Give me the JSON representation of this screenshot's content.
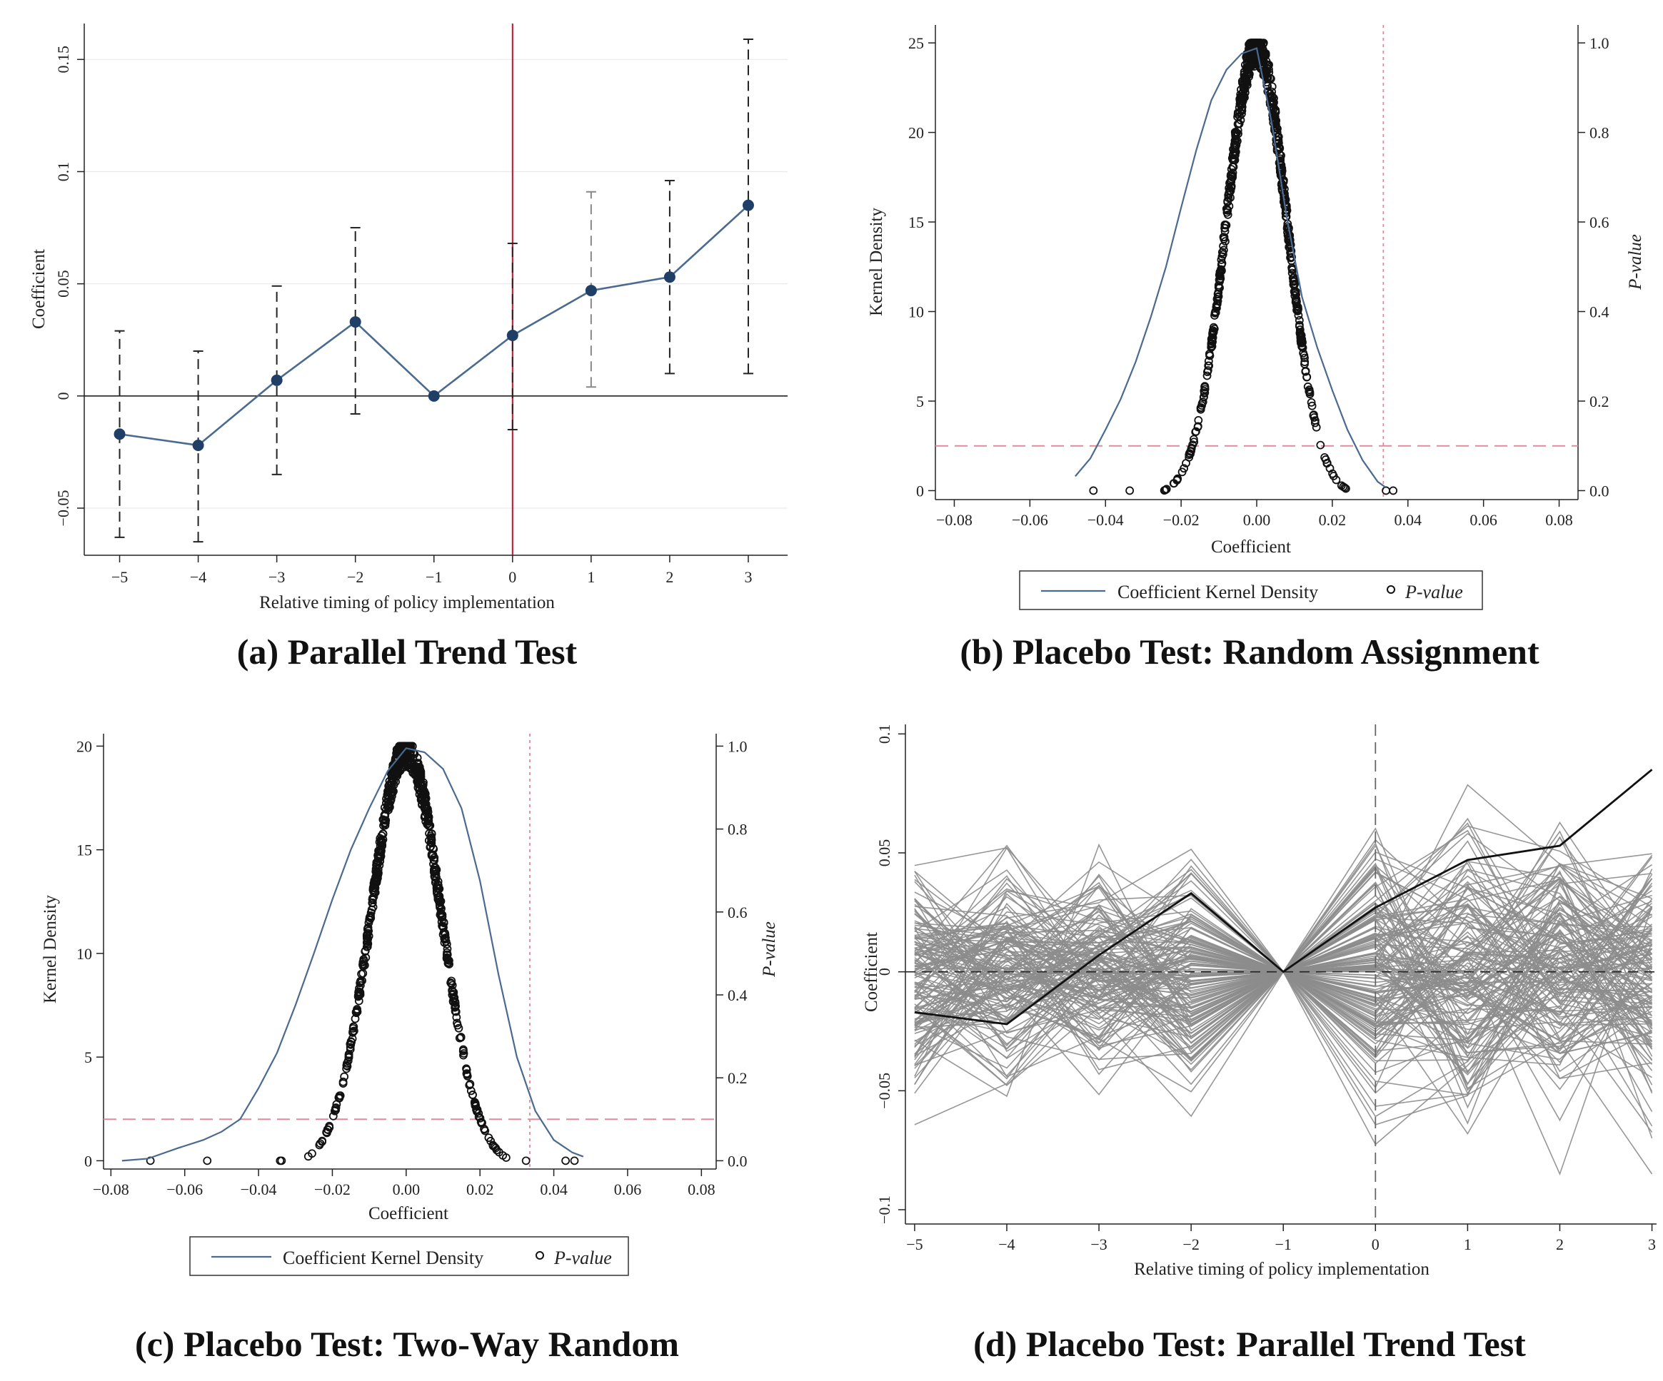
{
  "colors": {
    "navy": "#1f3f66",
    "line": "#4a6a8f",
    "red": "#c8102e",
    "pink": "#e08a9a",
    "gray": "#8c8c8c",
    "black": "#111111"
  },
  "chart_data": [
    {
      "id": "a",
      "type": "line",
      "caption": "(a) Parallel Trend Test",
      "xlabel": "Relative timing of policy implementation",
      "ylabel": "Coefficient",
      "x": [
        -5,
        -4,
        -3,
        -2,
        -1,
        0,
        1,
        2,
        3
      ],
      "x_ticks": [
        "−5",
        "−4",
        "−3",
        "−2",
        "−1",
        "0",
        "1",
        "2",
        "3"
      ],
      "coef": [
        -0.017,
        -0.022,
        0.007,
        0.033,
        0.0,
        0.027,
        0.047,
        0.053,
        0.085
      ],
      "ci_low": [
        -0.063,
        -0.065,
        -0.035,
        -0.008,
        0.0,
        -0.015,
        0.004,
        0.01,
        0.01
      ],
      "ci_high": [
        0.029,
        0.02,
        0.049,
        0.075,
        0.0,
        0.068,
        0.091,
        0.096,
        0.159
      ],
      "y_ticks": [
        -0.05,
        0,
        0.05,
        0.1,
        0.15
      ],
      "y_tick_labels": [
        "−0.05",
        "0",
        "0.05",
        "0.1",
        "0.15"
      ],
      "xlim": [
        -5.45,
        3.5
      ],
      "ylim": [
        -0.071,
        0.166
      ],
      "ref_line_x": 0,
      "grid": true
    },
    {
      "id": "b",
      "type": "density+scatter",
      "caption": "(b) Placebo Test: Random Assignment",
      "xlabel": "Coefficient",
      "ylabel_left": "Kernel Density",
      "ylabel_right": "P-value",
      "x_ticks": [
        -0.08,
        -0.06,
        -0.04,
        -0.02,
        0.0,
        0.02,
        0.04,
        0.06,
        0.08
      ],
      "x_tick_labels": [
        "−0.08",
        "−0.06",
        "−0.04",
        "−0.02",
        "0.00",
        "0.02",
        "0.04",
        "0.06",
        "0.08"
      ],
      "y_left_ticks": [
        0,
        5,
        10,
        15,
        20,
        25
      ],
      "y_right_ticks": [
        0.0,
        0.2,
        0.4,
        0.6,
        0.8,
        1.0
      ],
      "y_right_tick_labels": [
        "0.0",
        "0.2",
        "0.4",
        "0.6",
        "0.8",
        "1.0"
      ],
      "xlim": [
        -0.085,
        0.085
      ],
      "ylim_left": [
        -0.5,
        26
      ],
      "ylim_right": [
        -0.02,
        1.04
      ],
      "density_x": [
        -0.048,
        -0.044,
        -0.04,
        -0.036,
        -0.032,
        -0.028,
        -0.024,
        -0.02,
        -0.016,
        -0.012,
        -0.008,
        -0.004,
        0.0,
        0.004,
        0.008,
        0.012,
        0.016,
        0.02,
        0.024,
        0.028,
        0.032,
        0.034
      ],
      "density_y": [
        0.8,
        1.8,
        3.4,
        5.1,
        7.2,
        9.7,
        12.5,
        15.8,
        19.0,
        21.8,
        23.5,
        24.4,
        24.7,
        20.5,
        15.2,
        10.8,
        8.0,
        5.6,
        3.4,
        1.7,
        0.5,
        0.2
      ],
      "pvalue_spread_sd": 0.0085,
      "pvalue_x_range": [
        -0.048,
        0.038
      ],
      "ref_vline_x": 0.0335,
      "ref_hline_p": 0.1,
      "legend": [
        "Coefficient Kernel Density",
        "P-value"
      ]
    },
    {
      "id": "c",
      "type": "density+scatter",
      "caption": "(c) Placebo Test: Two-Way Random",
      "xlabel": "Coefficient",
      "ylabel_left": "Kernel Density",
      "ylabel_right": "P-value",
      "x_ticks": [
        -0.08,
        -0.06,
        -0.04,
        -0.02,
        0.0,
        0.02,
        0.04,
        0.06,
        0.08
      ],
      "x_tick_labels": [
        "−0.08",
        "−0.06",
        "−0.04",
        "−0.02",
        "0.00",
        "0.02",
        "0.04",
        "0.06",
        "0.08"
      ],
      "y_left_ticks": [
        0,
        5,
        10,
        15,
        20
      ],
      "y_right_ticks": [
        0.0,
        0.2,
        0.4,
        0.6,
        0.8,
        1.0
      ],
      "y_right_tick_labels": [
        "0.0",
        "0.2",
        "0.4",
        "0.6",
        "0.8",
        "1.0"
      ],
      "xlim": [
        -0.082,
        0.084
      ],
      "ylim_left": [
        -0.4,
        20.6
      ],
      "ylim_right": [
        -0.02,
        1.03
      ],
      "density_x": [
        -0.077,
        -0.07,
        -0.062,
        -0.055,
        -0.05,
        -0.045,
        -0.04,
        -0.035,
        -0.03,
        -0.025,
        -0.02,
        -0.015,
        -0.01,
        -0.005,
        0.0,
        0.005,
        0.01,
        0.015,
        0.02,
        0.025,
        0.03,
        0.035,
        0.04,
        0.045,
        0.048
      ],
      "density_y": [
        0.0,
        0.1,
        0.6,
        1.0,
        1.4,
        2.0,
        3.5,
        5.2,
        7.5,
        10.0,
        12.6,
        15.0,
        17.0,
        18.8,
        19.9,
        19.7,
        18.9,
        17.0,
        13.5,
        9.0,
        5.0,
        2.4,
        1.0,
        0.4,
        0.2
      ],
      "pvalue_spread_sd": 0.01,
      "pvalue_x_range": [
        -0.077,
        0.048
      ],
      "ref_vline_x": 0.0335,
      "ref_hline_p": 0.1,
      "legend": [
        "Coefficient Kernel Density",
        "P-value"
      ]
    },
    {
      "id": "d",
      "type": "line",
      "caption": "(d) Placebo Test: Parallel Trend Test",
      "xlabel": "Relative timing of policy implementation",
      "ylabel": "Coefficient",
      "x": [
        -5,
        -4,
        -3,
        -2,
        -1,
        0,
        1,
        2,
        3
      ],
      "x_ticks": [
        "−5",
        "−4",
        "−3",
        "−2",
        "−1",
        "0",
        "1",
        "2",
        "3"
      ],
      "true_series": [
        -0.017,
        -0.022,
        0.007,
        0.033,
        0.0,
        0.027,
        0.047,
        0.053,
        0.085
      ],
      "placebo_series_count": 150,
      "placebo_sd": 0.022,
      "y_ticks": [
        -0.1,
        -0.05,
        0,
        0.05,
        0.1
      ],
      "y_tick_labels": [
        "−0.1",
        "−0.05",
        "0",
        "0.05",
        "0.1"
      ],
      "xlim": [
        -5.1,
        3.05
      ],
      "ylim": [
        -0.106,
        0.104
      ],
      "ref_line_x": 0
    }
  ]
}
